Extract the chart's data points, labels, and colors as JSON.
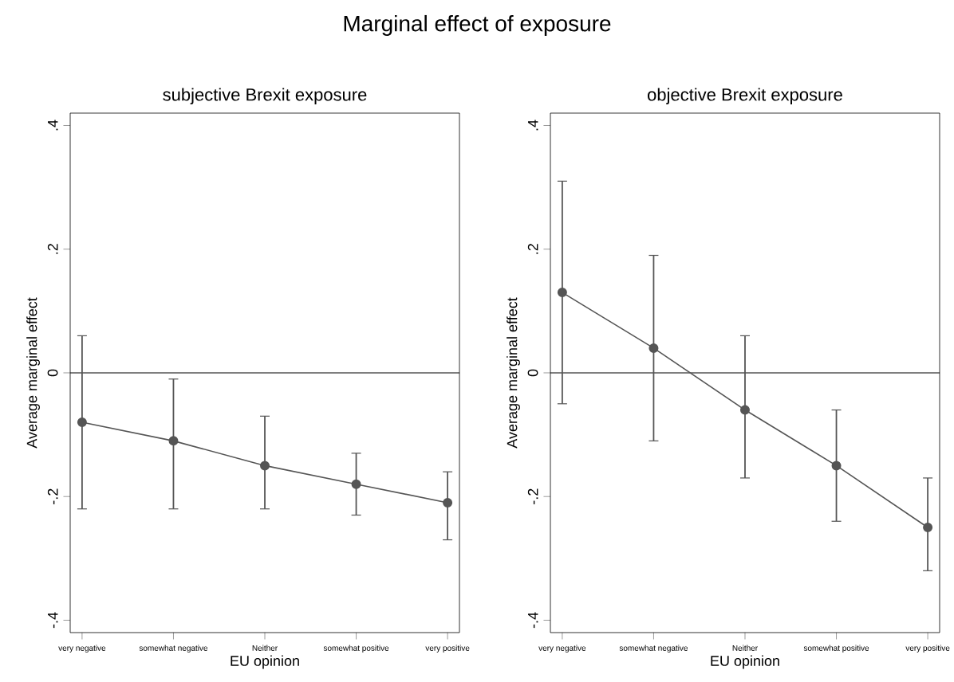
{
  "chart_data": [
    {
      "type": "line",
      "title": "Marginal effect of exposure",
      "subtitle": "subjective Brexit exposure",
      "xlabel": "EU opinion",
      "ylabel": "Average marginal effect",
      "categories": [
        "very negative",
        "somewhat negative",
        "Neither",
        "somewhat positive",
        "very positive"
      ],
      "series": [
        {
          "color": "#555555",
          "values": [
            -0.08,
            -0.11,
            -0.15,
            -0.18,
            -0.21
          ],
          "errors": [
            [
              -0.22,
              0.06
            ],
            [
              -0.22,
              -0.01
            ],
            [
              -0.22,
              -0.07
            ],
            [
              -0.23,
              -0.13
            ],
            [
              -0.27,
              -0.16
            ]
          ]
        }
      ],
      "ylim": [
        -0.42,
        0.42
      ],
      "yticks": [
        {
          "value": -0.4,
          "label": "-.4"
        },
        {
          "value": -0.2,
          "label": "-.2"
        },
        0,
        {
          "value": 0.2,
          "label": ".2"
        },
        {
          "value": 0.4,
          "label": ".4"
        }
      ],
      "ref_lines": [
        {
          "axis": "y",
          "value": 0,
          "color": "#000000"
        }
      ],
      "marker": "circle",
      "grid": false
    },
    {
      "type": "line",
      "title": "objective Brexit exposure",
      "xlabel": "EU opinion",
      "ylabel": "Average marginal effect",
      "categories": [
        "very negative",
        "somewhat negative",
        "Neither",
        "somewhat positive",
        "very positive"
      ],
      "series": [
        {
          "color": "#555555",
          "values": [
            0.13,
            0.04,
            -0.06,
            -0.15,
            -0.25
          ],
          "errors": [
            [
              -0.05,
              0.31
            ],
            [
              -0.11,
              0.19
            ],
            [
              -0.17,
              0.06
            ],
            [
              -0.24,
              -0.06
            ],
            [
              -0.32,
              -0.17
            ]
          ]
        }
      ],
      "ylim": [
        -0.42,
        0.42
      ],
      "yticks": [
        {
          "value": -0.4,
          "label": "-.4"
        },
        {
          "value": -0.2,
          "label": "-.2"
        },
        0,
        {
          "value": 0.2,
          "label": ".2"
        },
        {
          "value": 0.4,
          "label": ".4"
        }
      ],
      "ref_lines": [
        {
          "axis": "y",
          "value": 0,
          "color": "#000000"
        }
      ],
      "marker": "circle",
      "grid": false
    }
  ]
}
